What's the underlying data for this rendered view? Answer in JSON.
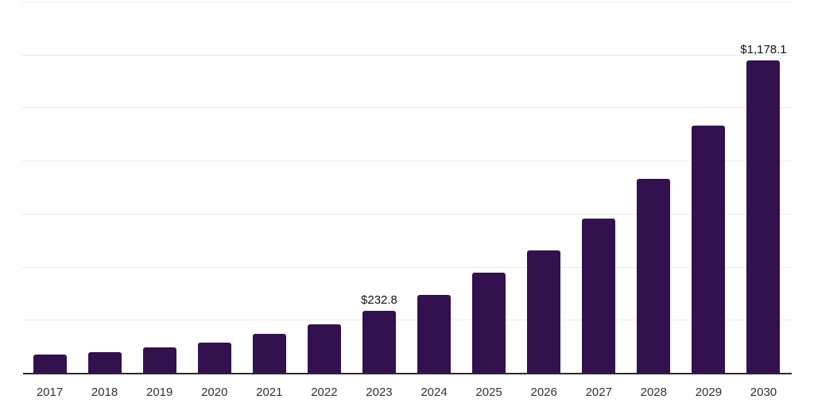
{
  "chart_data": {
    "type": "bar",
    "title": "",
    "xlabel": "",
    "ylabel": "",
    "categories": [
      "2017",
      "2018",
      "2019",
      "2020",
      "2021",
      "2022",
      "2023",
      "2024",
      "2025",
      "2026",
      "2027",
      "2028",
      "2029",
      "2030"
    ],
    "values": [
      70,
      79,
      97,
      115,
      146,
      183,
      232.8,
      294,
      377,
      463,
      581,
      730,
      931,
      1178.1
    ],
    "point_labels": [
      "",
      "",
      "",
      "",
      "",
      "",
      "$232.8",
      "",
      "",
      "",
      "",
      "",
      "",
      "$1,178.1"
    ],
    "labeled_points": [
      {
        "category": "2023",
        "label": "$232.8",
        "value": 232.8
      },
      {
        "category": "2030",
        "label": "$1,178.1",
        "value": 1178.1
      }
    ],
    "ylim": [
      0,
      1400
    ],
    "gridline_interval": 200,
    "grid": true,
    "legend": false,
    "y_tick_labels_visible": false,
    "colors": {
      "bar": "#33114e",
      "gridline": "#ececec",
      "axis": "#2b2b2b",
      "data_label": "#111111",
      "tick_label": "#333333",
      "background": "#ffffff"
    }
  }
}
